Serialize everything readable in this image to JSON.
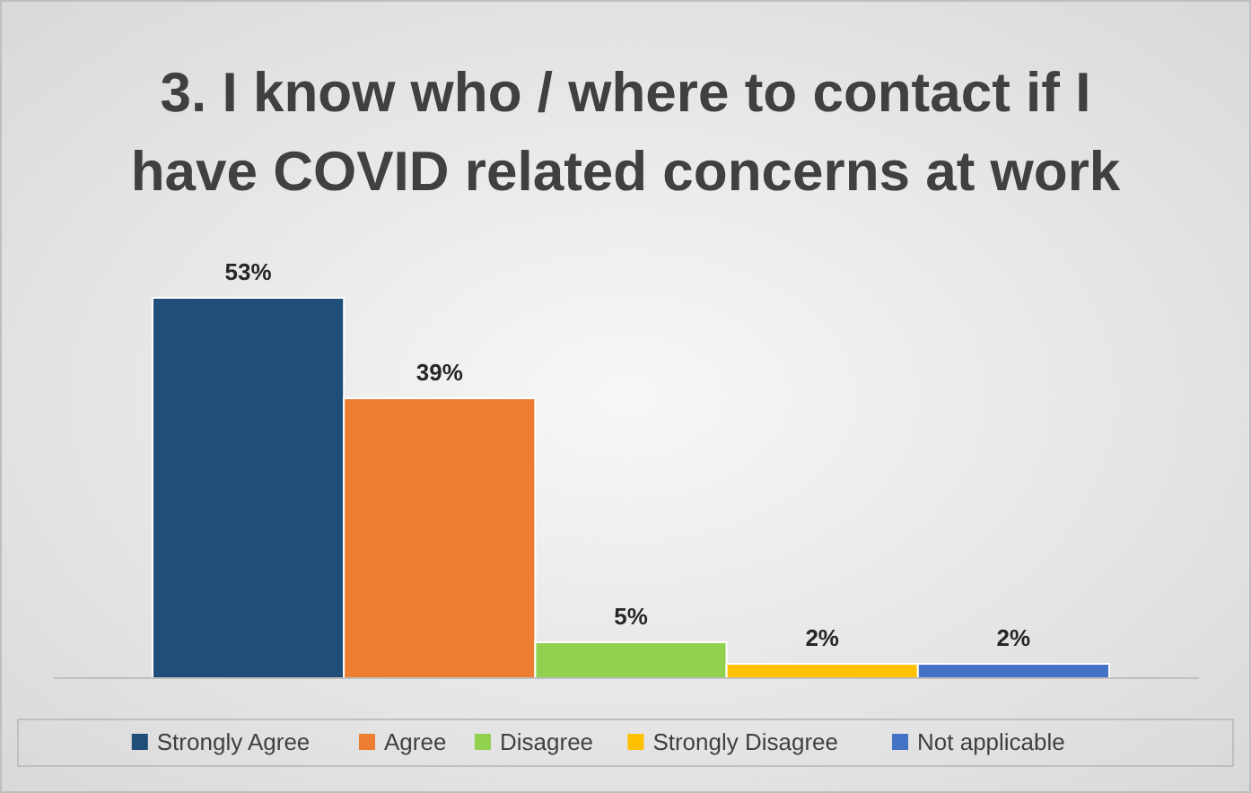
{
  "chart_data": {
    "type": "bar",
    "title": "3. I know who / where to contact if I have COVID related concerns at work",
    "categories": [
      null
    ],
    "legend": "bottom",
    "series": [
      {
        "name": "Strongly Agree",
        "color": "#1f4e79",
        "values": [
          53
        ],
        "value_labels": [
          "53%"
        ]
      },
      {
        "name": "Agree",
        "color": "#ed7d31",
        "values": [
          39
        ],
        "value_labels": [
          "39%"
        ]
      },
      {
        "name": "Disagree",
        "color": "#92d050",
        "values": [
          5
        ],
        "value_labels": [
          "5%"
        ]
      },
      {
        "name": "Strongly Disagree",
        "color": "#ffc000",
        "values": [
          2
        ],
        "value_labels": [
          "2%"
        ]
      },
      {
        "name": "Not applicable",
        "color": "#4472c4",
        "values": [
          2
        ],
        "value_labels": [
          "2%"
        ]
      }
    ]
  }
}
